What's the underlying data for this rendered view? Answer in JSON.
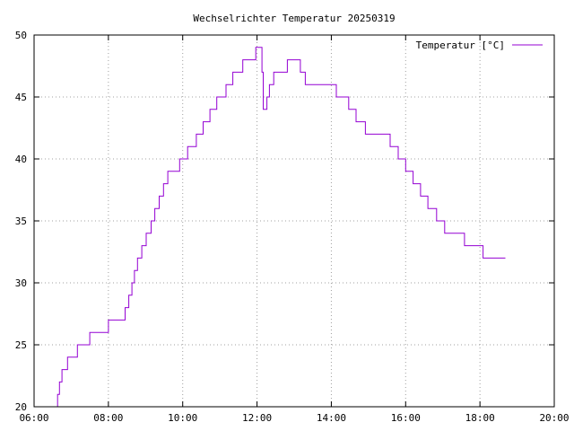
{
  "chart_data": {
    "type": "line",
    "title": "Wechselrichter Temperatur 20250319",
    "xlabel": "",
    "ylabel": "",
    "grid": true,
    "legend_position": "top-right",
    "x_ticks": [
      "06:00",
      "08:00",
      "10:00",
      "12:00",
      "14:00",
      "16:00",
      "18:00",
      "20:00"
    ],
    "y_ticks": [
      "20",
      "25",
      "30",
      "35",
      "40",
      "45",
      "50"
    ],
    "xlim": [
      "06:00",
      "20:00"
    ],
    "ylim": [
      20,
      50
    ],
    "series": [
      {
        "name": "Temperatur [°C]",
        "color": "#9400d3",
        "line_shape": "step",
        "points": [
          [
            "06:36",
            20
          ],
          [
            "06:38",
            21
          ],
          [
            "06:41",
            22
          ],
          [
            "06:45",
            23
          ],
          [
            "06:54",
            24
          ],
          [
            "07:10",
            25
          ],
          [
            "07:30",
            26
          ],
          [
            "08:00",
            27
          ],
          [
            "08:27",
            28
          ],
          [
            "08:33",
            29
          ],
          [
            "08:38",
            30
          ],
          [
            "08:42",
            31
          ],
          [
            "08:47",
            32
          ],
          [
            "08:54",
            33
          ],
          [
            "09:01",
            34
          ],
          [
            "09:09",
            35
          ],
          [
            "09:15",
            36
          ],
          [
            "09:22",
            37
          ],
          [
            "09:29",
            38
          ],
          [
            "09:36",
            39
          ],
          [
            "09:55",
            40
          ],
          [
            "10:08",
            41
          ],
          [
            "10:22",
            42
          ],
          [
            "10:33",
            43
          ],
          [
            "10:44",
            44
          ],
          [
            "10:55",
            45
          ],
          [
            "11:10",
            46
          ],
          [
            "11:21",
            47
          ],
          [
            "11:37",
            48
          ],
          [
            "11:58",
            49
          ],
          [
            "12:08",
            47
          ],
          [
            "12:10",
            44
          ],
          [
            "12:16",
            45
          ],
          [
            "12:20",
            46
          ],
          [
            "12:27",
            47
          ],
          [
            "12:49",
            48
          ],
          [
            "13:10",
            47
          ],
          [
            "13:18",
            46
          ],
          [
            "14:08",
            45
          ],
          [
            "14:28",
            44
          ],
          [
            "14:40",
            43
          ],
          [
            "14:55",
            42
          ],
          [
            "15:35",
            41
          ],
          [
            "15:48",
            40
          ],
          [
            "16:00",
            39
          ],
          [
            "16:12",
            38
          ],
          [
            "16:24",
            37
          ],
          [
            "16:36",
            36
          ],
          [
            "16:50",
            35
          ],
          [
            "17:03",
            34
          ],
          [
            "17:35",
            33
          ],
          [
            "18:05",
            32
          ],
          [
            "18:41",
            32
          ]
        ]
      }
    ]
  }
}
